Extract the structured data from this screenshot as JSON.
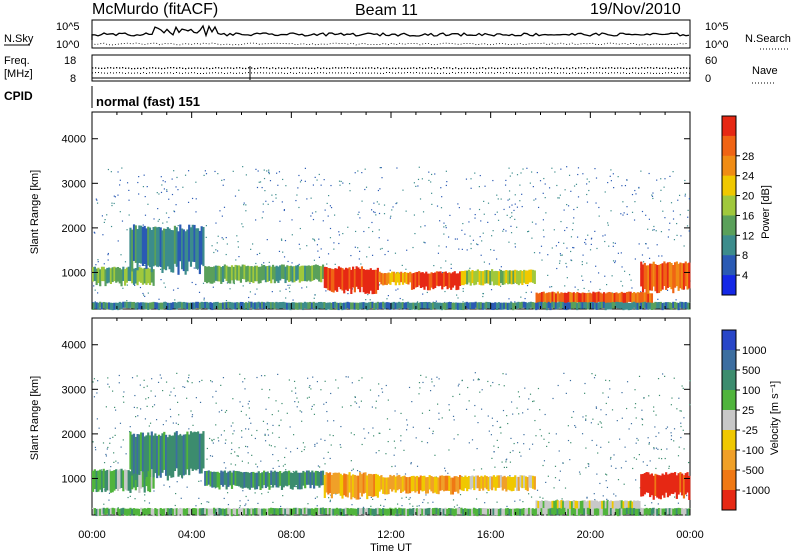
{
  "header": {
    "station": "McMurdo (fitACF)",
    "beam": "Beam 11",
    "date": "19/Nov/2010"
  },
  "status_panels": {
    "nsky_label": "N.Sky",
    "nsky_ticks": [
      "10^5",
      "10^0"
    ],
    "nsearch_label": "N.Search",
    "freq_label_1": "Freq.",
    "freq_label_2": "[MHz]",
    "freq_ticks": [
      "18",
      "8"
    ],
    "nave_label": "Nave",
    "nave_ticks": [
      "60",
      "0"
    ],
    "cpid_label": "CPID",
    "cpid_value": "normal (fast) 151"
  },
  "chart_data": [
    {
      "type": "heatmap",
      "name": "power",
      "ylabel": "Slant Range [km]",
      "yticks": [
        1000,
        2000,
        3000,
        4000
      ],
      "ylim": [
        180,
        4600
      ],
      "xlim_hours": [
        0,
        24
      ],
      "colorbar": {
        "label": "Power [dB]",
        "ticks": [
          "4",
          "8",
          "12",
          "16",
          "20",
          "24",
          "28"
        ],
        "colors": [
          "#1428e6",
          "#2a5ab4",
          "#3c8c8c",
          "#5aa05a",
          "#a0c83c",
          "#f0c800",
          "#f08c14",
          "#f06414",
          "#e62814"
        ]
      },
      "bands": [
        {
          "t0": 0.0,
          "t1": 2.5,
          "r0": 750,
          "r1": 1100,
          "level": 3
        },
        {
          "t0": 1.5,
          "t1": 4.5,
          "r0": 1100,
          "r1": 2000,
          "level": 2
        },
        {
          "t0": 4.5,
          "t1": 9.3,
          "r0": 800,
          "r1": 1150,
          "level": 3
        },
        {
          "t0": 9.3,
          "t1": 11.5,
          "r0": 600,
          "r1": 1100,
          "level": 8
        },
        {
          "t0": 11.5,
          "t1": 12.8,
          "r0": 750,
          "r1": 1000,
          "level": 6
        },
        {
          "t0": 12.8,
          "t1": 14.8,
          "r0": 650,
          "r1": 1000,
          "level": 8
        },
        {
          "t0": 14.8,
          "t1": 17.8,
          "r0": 750,
          "r1": 1050,
          "level": 4
        },
        {
          "t0": 17.8,
          "t1": 22.5,
          "r0": 300,
          "r1": 550,
          "level": 7
        },
        {
          "t0": 22.0,
          "t1": 24.0,
          "r0": 600,
          "r1": 1200,
          "level": 7
        },
        {
          "t0": 0.0,
          "t1": 24.0,
          "r0": 180,
          "r1": 330,
          "level": 2
        }
      ]
    },
    {
      "type": "heatmap",
      "name": "velocity",
      "ylabel": "Slant Range [km]",
      "xlabel": "Time UT",
      "yticks": [
        1000,
        2000,
        3000,
        4000
      ],
      "ylim": [
        180,
        4600
      ],
      "xlim_hours": [
        0,
        24
      ],
      "xticks": [
        "00:00",
        "04:00",
        "08:00",
        "12:00",
        "16:00",
        "20:00",
        "00:00"
      ],
      "colorbar": {
        "label": "Velocity [m s⁻¹]",
        "ticks": [
          "1000",
          "500",
          "100",
          "25",
          "-25",
          "-100",
          "-500",
          "-1000"
        ],
        "colors": [
          "#2846c8",
          "#3c6ea0",
          "#3c8c6e",
          "#50b43c",
          "#c8c8c8",
          "#f0c800",
          "#f0a028",
          "#f07814",
          "#e62814"
        ]
      },
      "bands": [
        {
          "t0": 0.0,
          "t1": 2.5,
          "r0": 750,
          "r1": 1200,
          "level": 3
        },
        {
          "t0": 1.5,
          "t1": 4.5,
          "r0": 1100,
          "r1": 2000,
          "level": 2
        },
        {
          "t0": 4.5,
          "t1": 9.3,
          "r0": 800,
          "r1": 1150,
          "level": 2
        },
        {
          "t0": 9.3,
          "t1": 11.5,
          "r0": 600,
          "r1": 1100,
          "level": 6
        },
        {
          "t0": 11.5,
          "t1": 14.8,
          "r0": 700,
          "r1": 1050,
          "level": 6
        },
        {
          "t0": 14.8,
          "t1": 17.8,
          "r0": 750,
          "r1": 1050,
          "level": 5
        },
        {
          "t0": 17.8,
          "t1": 22.0,
          "r0": 300,
          "r1": 500,
          "level": 4
        },
        {
          "t0": 22.0,
          "t1": 24.0,
          "r0": 600,
          "r1": 1100,
          "level": 8
        },
        {
          "t0": 0.0,
          "t1": 24.0,
          "r0": 180,
          "r1": 330,
          "level": 3
        }
      ]
    }
  ]
}
